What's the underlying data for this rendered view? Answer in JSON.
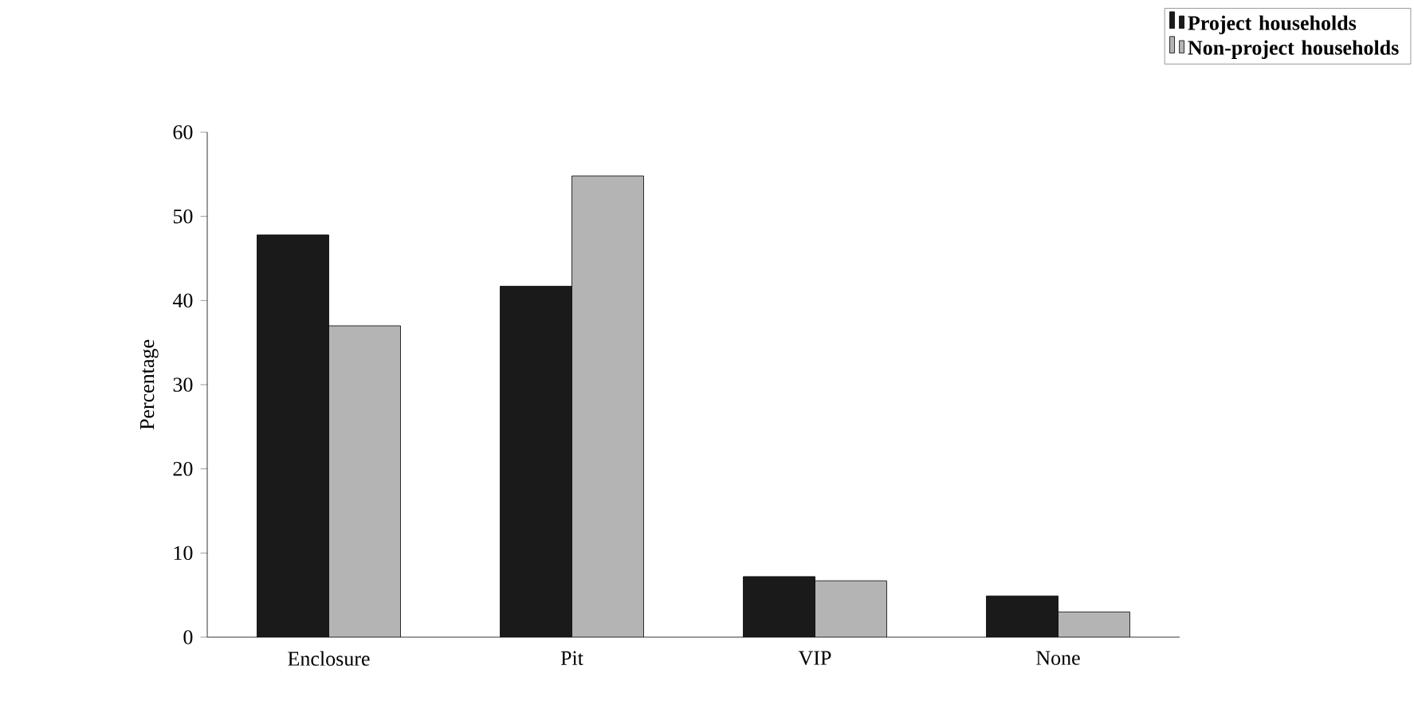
{
  "chart_data": {
    "type": "bar",
    "ylabel": "Percentage",
    "categories": [
      "Enclosure",
      "Pit",
      "VIP",
      "None"
    ],
    "series": [
      {
        "name": "Project households",
        "color": "#1a1a1a",
        "values": [
          47.8,
          41.7,
          7.2,
          4.9
        ]
      },
      {
        "name": "Non-project households",
        "color": "#b4b4b4",
        "values": [
          37.0,
          54.8,
          6.7,
          3.0
        ]
      }
    ],
    "ylim": [
      0,
      60
    ],
    "yticks": [
      0,
      10,
      20,
      30,
      40,
      50,
      60
    ],
    "legend": "top right"
  }
}
